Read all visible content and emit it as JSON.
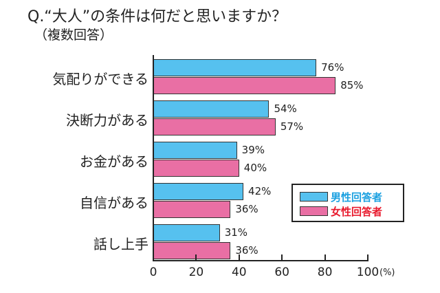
{
  "header": {
    "title": "Q.“大人”の条件は何だと思いますか？",
    "subtitle": "（複数回答）"
  },
  "legend": {
    "items": [
      {
        "label": "男性回答者",
        "color": "#56c1ef",
        "text_color": "#1aa0e0"
      },
      {
        "label": "女性回答者",
        "color": "#e96fa4",
        "text_color": "#e8192c"
      }
    ]
  },
  "axis": {
    "ticks": [
      "0",
      "20",
      "40",
      "60",
      "80",
      "100"
    ],
    "unit": "(%)"
  },
  "chart_data": {
    "type": "bar",
    "orientation": "horizontal",
    "title": "Q.“大人”の条件は何だと思いますか？（複数回答）",
    "categories": [
      "気配りができる",
      "決断力がある",
      "お金がある",
      "自信がある",
      "話し上手"
    ],
    "series": [
      {
        "name": "男性回答者",
        "color": "#56c1ef",
        "values": [
          76,
          54,
          39,
          42,
          31
        ]
      },
      {
        "name": "女性回答者",
        "color": "#e96fa4",
        "values": [
          85,
          57,
          40,
          36,
          36
        ]
      }
    ],
    "value_labels": {
      "male": [
        "76%",
        "54%",
        "39%",
        "42%",
        "31%"
      ],
      "female": [
        "85%",
        "57%",
        "40%",
        "36%",
        "36%"
      ]
    },
    "xlabel": "(%)",
    "ylabel": "",
    "xlim": [
      0,
      100
    ],
    "xticks": [
      0,
      20,
      40,
      60,
      80,
      100
    ],
    "grid": false,
    "legend_position": "lower right inside"
  }
}
